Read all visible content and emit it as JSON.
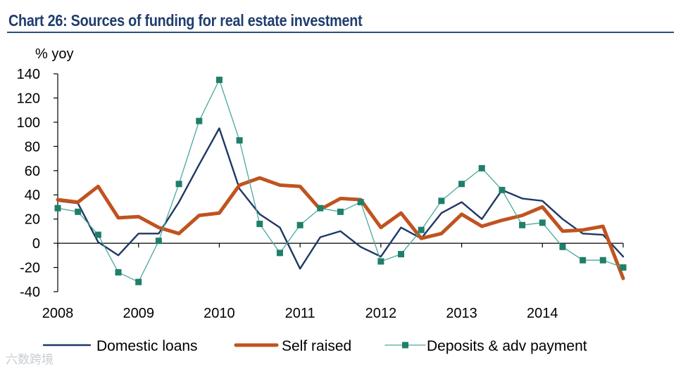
{
  "chart_data": {
    "type": "line",
    "title": "Chart 26: Sources of funding for real estate investment",
    "ylabel": "% yoy",
    "xlabel": "",
    "ylim": [
      -40,
      140
    ],
    "yticks": [
      140,
      120,
      100,
      80,
      60,
      40,
      20,
      0,
      -20,
      -40
    ],
    "year_labels": [
      "2008",
      "2009",
      "2010",
      "2011",
      "2012",
      "2013",
      "2014"
    ],
    "x_start": 2008.0,
    "x_end": 2015.0,
    "x": [
      2008.0,
      2008.25,
      2008.5,
      2008.75,
      2009.0,
      2009.25,
      2009.5,
      2009.75,
      2010.0,
      2010.25,
      2010.5,
      2010.75,
      2011.0,
      2011.25,
      2011.5,
      2011.75,
      2012.0,
      2012.25,
      2012.5,
      2012.75,
      2013.0,
      2013.25,
      2013.5,
      2013.75,
      2014.0,
      2014.25,
      2014.5,
      2014.75,
      2015.0
    ],
    "series": [
      {
        "name": "Domestic loans",
        "color": "#1f3864",
        "style": "line",
        "values": [
          35,
          33,
          1,
          -10,
          8,
          8,
          34,
          65,
          95,
          45,
          24,
          13,
          -21,
          5,
          10,
          -3,
          -11,
          13,
          4,
          25,
          34,
          20,
          44,
          37,
          35,
          20,
          8,
          7,
          -11
        ]
      },
      {
        "name": "Self raised",
        "color": "#c0531f",
        "style": "thick-line",
        "values": [
          36,
          34,
          47,
          21,
          22,
          13,
          8,
          23,
          25,
          48,
          54,
          48,
          47,
          28,
          37,
          36,
          13,
          25,
          4,
          8,
          24,
          14,
          19,
          23,
          30,
          10,
          11,
          14,
          -29
        ]
      },
      {
        "name": "Deposits & adv payment",
        "color": "#4aa89c",
        "marker_color": "#1f7f6a",
        "style": "line-square-markers",
        "values": [
          29,
          26,
          7,
          -24,
          -32,
          2,
          49,
          101,
          135,
          85,
          16,
          -8,
          15,
          29,
          26,
          34,
          -15,
          -9,
          11,
          35,
          49,
          62,
          44,
          15,
          17,
          -3,
          -14,
          -14,
          -20
        ]
      }
    ],
    "legend": [
      "Domestic loans",
      "Self raised",
      "Deposits & adv payment"
    ],
    "legend_position": "bottom",
    "grid": false
  },
  "watermark": "六数跨境"
}
